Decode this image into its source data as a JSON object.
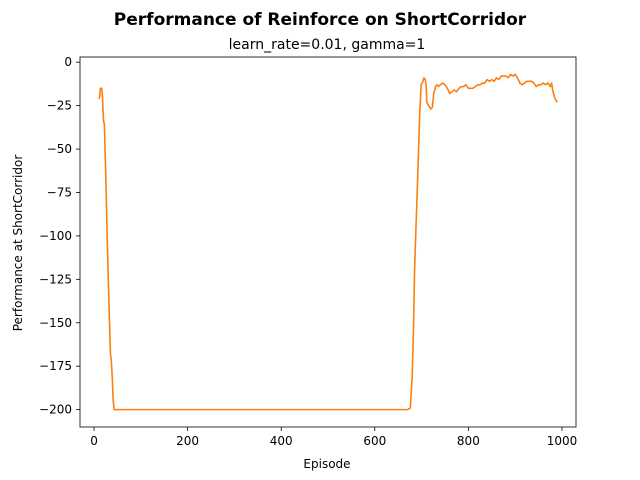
{
  "chart_data": {
    "type": "line",
    "title": "Performance of Reinforce on ShortCorridor",
    "subtitle": "learn_rate=0.01, gamma=1",
    "xlabel": "Episode",
    "ylabel": "Performance at ShortCorridor",
    "xlim": [
      -30,
      1030
    ],
    "ylim": [
      -210,
      3
    ],
    "xticks": [
      0,
      200,
      400,
      600,
      800,
      1000
    ],
    "yticks": [
      0,
      -25,
      -50,
      -75,
      -100,
      -125,
      -150,
      -175,
      -200
    ],
    "grid": false,
    "legend": "none",
    "series": [
      {
        "color": "#ff7f0e",
        "points": [
          [
            10,
            -21
          ],
          [
            12,
            -20
          ],
          [
            13,
            -16
          ],
          [
            14,
            -15
          ],
          [
            16,
            -15
          ],
          [
            17,
            -16
          ],
          [
            18,
            -20
          ],
          [
            20,
            -33
          ],
          [
            21,
            -35
          ],
          [
            22,
            -35
          ],
          [
            24,
            -55
          ],
          [
            26,
            -75
          ],
          [
            28,
            -100
          ],
          [
            30,
            -120
          ],
          [
            32,
            -140
          ],
          [
            35,
            -168
          ],
          [
            37,
            -172
          ],
          [
            39,
            -182
          ],
          [
            41,
            -195
          ],
          [
            43,
            -200
          ],
          [
            100,
            -200
          ],
          [
            200,
            -200
          ],
          [
            300,
            -200
          ],
          [
            400,
            -200
          ],
          [
            500,
            -200
          ],
          [
            600,
            -200
          ],
          [
            670,
            -200
          ],
          [
            676,
            -199
          ],
          [
            680,
            -180
          ],
          [
            683,
            -150
          ],
          [
            685,
            -120
          ],
          [
            688,
            -95
          ],
          [
            690,
            -80
          ],
          [
            693,
            -55
          ],
          [
            696,
            -30
          ],
          [
            699,
            -13
          ],
          [
            703,
            -11
          ],
          [
            705,
            -9
          ],
          [
            708,
            -10
          ],
          [
            710,
            -14
          ],
          [
            711,
            -23
          ],
          [
            715,
            -25
          ],
          [
            720,
            -27
          ],
          [
            723,
            -26
          ],
          [
            726,
            -18
          ],
          [
            730,
            -14
          ],
          [
            733,
            -13
          ],
          [
            736,
            -14
          ],
          [
            740,
            -13
          ],
          [
            745,
            -12
          ],
          [
            750,
            -13
          ],
          [
            755,
            -15
          ],
          [
            760,
            -18
          ],
          [
            765,
            -17
          ],
          [
            770,
            -16
          ],
          [
            775,
            -17
          ],
          [
            780,
            -15
          ],
          [
            785,
            -14
          ],
          [
            790,
            -14
          ],
          [
            795,
            -13
          ],
          [
            800,
            -15
          ],
          [
            805,
            -15
          ],
          [
            810,
            -15
          ],
          [
            815,
            -14
          ],
          [
            820,
            -13
          ],
          [
            825,
            -13
          ],
          [
            830,
            -12
          ],
          [
            835,
            -12
          ],
          [
            840,
            -10
          ],
          [
            845,
            -11
          ],
          [
            850,
            -10
          ],
          [
            855,
            -11
          ],
          [
            860,
            -9
          ],
          [
            865,
            -10
          ],
          [
            870,
            -8
          ],
          [
            875,
            -8
          ],
          [
            880,
            -8
          ],
          [
            885,
            -9
          ],
          [
            890,
            -7
          ],
          [
            895,
            -8
          ],
          [
            900,
            -7
          ],
          [
            905,
            -9
          ],
          [
            910,
            -12
          ],
          [
            915,
            -13
          ],
          [
            920,
            -12
          ],
          [
            925,
            -11
          ],
          [
            930,
            -11
          ],
          [
            935,
            -11
          ],
          [
            940,
            -12
          ],
          [
            945,
            -14
          ],
          [
            950,
            -13
          ],
          [
            955,
            -13
          ],
          [
            960,
            -12
          ],
          [
            965,
            -13
          ],
          [
            970,
            -12
          ],
          [
            975,
            -14
          ],
          [
            978,
            -12
          ],
          [
            980,
            -16
          ],
          [
            985,
            -21
          ],
          [
            990,
            -23
          ]
        ]
      }
    ]
  }
}
